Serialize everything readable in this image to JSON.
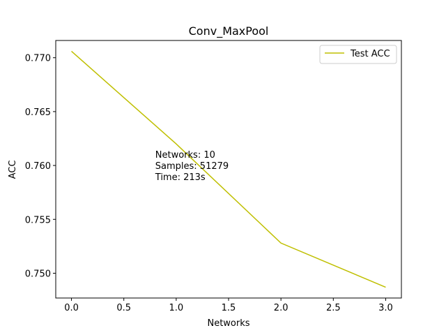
{
  "chart_data": {
    "type": "line",
    "title": "Conv_MaxPool",
    "xlabel": "Networks",
    "ylabel": "ACC",
    "xlim": [
      -0.15,
      3.15
    ],
    "ylim": [
      0.7477,
      0.7716
    ],
    "xticks": [
      0.0,
      0.5,
      1.0,
      1.5,
      2.0,
      2.5,
      3.0
    ],
    "xtick_labels": [
      "0.0",
      "0.5",
      "1.0",
      "1.5",
      "2.0",
      "2.5",
      "3.0"
    ],
    "yticks": [
      0.75,
      0.755,
      0.76,
      0.765,
      0.77
    ],
    "ytick_labels": [
      "0.750",
      "0.755",
      "0.760",
      "0.765",
      "0.770"
    ],
    "grid": false,
    "legend_position": "top-right",
    "series": [
      {
        "name": "Test ACC",
        "color": "#bfbf00",
        "x": [
          0,
          1,
          2,
          3
        ],
        "y": [
          0.7706,
          0.762,
          0.7528,
          0.7487
        ]
      }
    ],
    "annotation": {
      "x": 0.8,
      "y": 0.76,
      "lines": [
        "Networks: 10",
        "Samples: 51279",
        "Time: 213s"
      ]
    }
  }
}
